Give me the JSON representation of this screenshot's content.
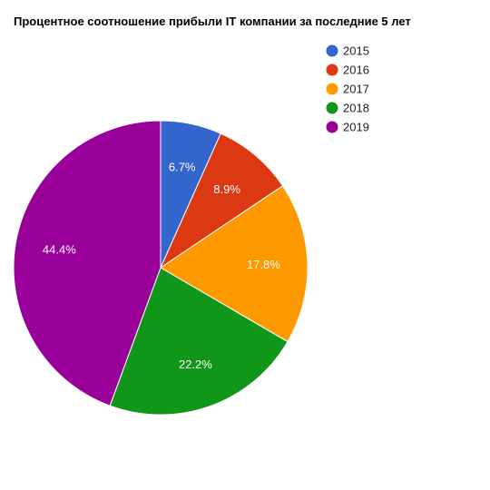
{
  "chart_data": {
    "type": "pie",
    "title": "Процентное соотношение прибыли IT компании за последние 5 лет",
    "categories": [
      "2015",
      "2016",
      "2017",
      "2018",
      "2019"
    ],
    "values": [
      6.7,
      8.9,
      17.8,
      22.2,
      44.4
    ],
    "data_labels": [
      "6.7%",
      "8.9%",
      "17.8%",
      "22.2%",
      "44.4%"
    ],
    "colors": [
      "#3366cc",
      "#dc3912",
      "#ff9900",
      "#109618",
      "#990099"
    ],
    "legend": {
      "position": "top-right",
      "entries": [
        "2015",
        "2016",
        "2017",
        "2018",
        "2019"
      ]
    },
    "start": "top",
    "direction": "clockwise"
  }
}
